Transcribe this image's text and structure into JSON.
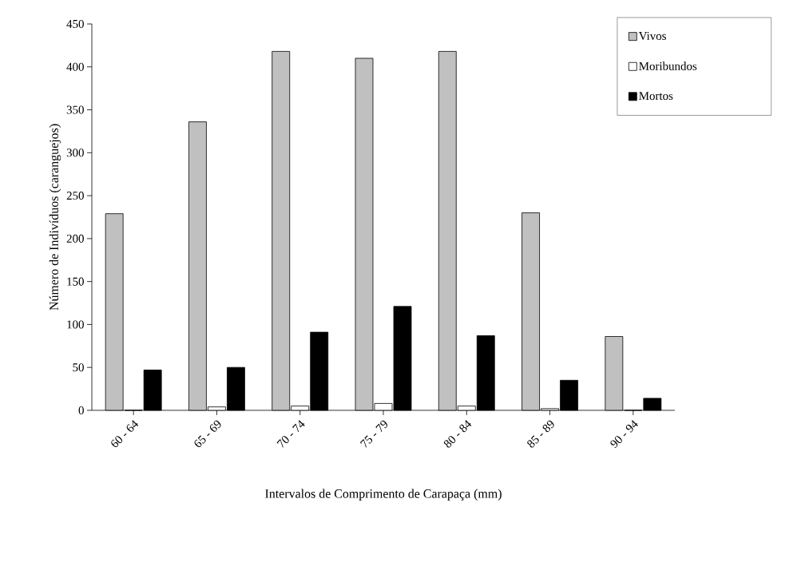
{
  "chart_data": {
    "type": "bar",
    "xlabel": "Intervalos de Comprimento de Carapaça (mm)",
    "ylabel": "Número de Indivíduos (caranguejos)",
    "categories": [
      "60 - 64",
      "65 - 69",
      "70 - 74",
      "75 - 79",
      "80 - 84",
      "85 - 89",
      "90 - 94"
    ],
    "series": [
      {
        "name": "Vivos",
        "color": "#c0c0c0",
        "values": [
          229,
          336,
          418,
          410,
          418,
          230,
          86
        ]
      },
      {
        "name": "Moribundos",
        "color": "#ffffff",
        "values": [
          0,
          4,
          5,
          8,
          5,
          2,
          0
        ]
      },
      {
        "name": "Mortos",
        "color": "#000000",
        "values": [
          47,
          50,
          91,
          121,
          87,
          35,
          14
        ]
      }
    ],
    "ylim": [
      0,
      450
    ],
    "yticks": [
      0,
      50,
      100,
      150,
      200,
      250,
      300,
      350,
      400,
      450
    ],
    "grid": false,
    "legend": "top right"
  }
}
